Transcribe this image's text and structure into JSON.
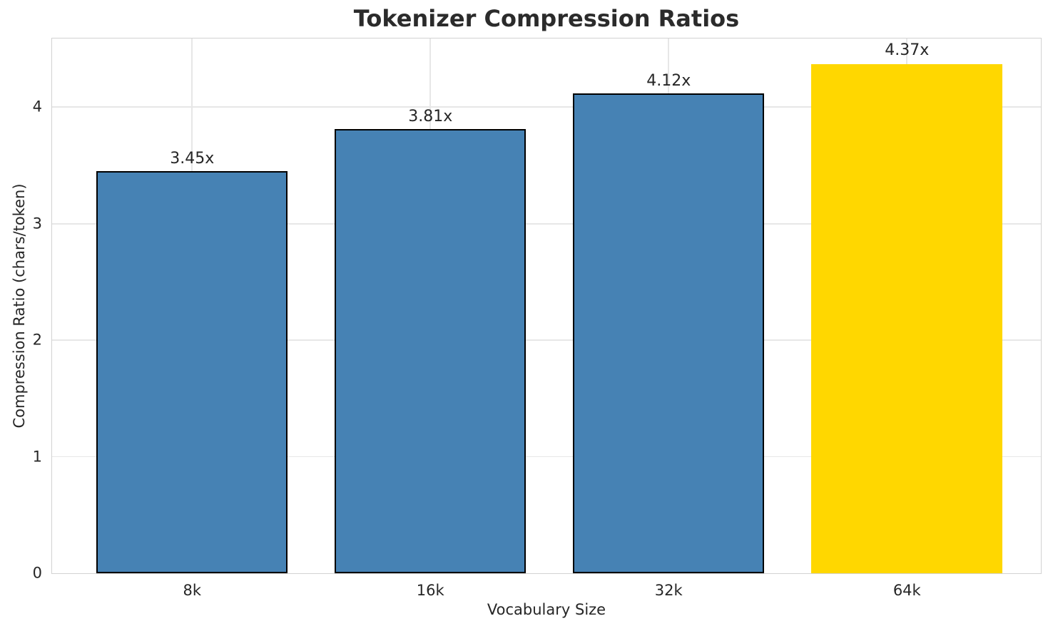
{
  "chart_data": {
    "type": "bar",
    "title": "Tokenizer Compression Ratios",
    "xlabel": "Vocabulary Size",
    "ylabel": "Compression Ratio (chars/token)",
    "categories": [
      "8k",
      "16k",
      "32k",
      "64k"
    ],
    "values": [
      3.45,
      3.81,
      4.12,
      4.37
    ],
    "value_labels": [
      "3.45x",
      "3.81x",
      "4.12x",
      "4.37x"
    ],
    "bar_colors": [
      "#4682B4",
      "#4682B4",
      "#4682B4",
      "#FFD700"
    ],
    "bar_edge_colors": [
      "#000000",
      "#000000",
      "#000000",
      "none"
    ],
    "base_color": "#4682B4",
    "highlight_color": "#FFD700",
    "yticks": [
      0,
      1,
      2,
      3,
      4
    ],
    "ylim": [
      0,
      4.589
    ],
    "grid": "both",
    "grid_color": "#e7e7e7",
    "legend_position": "none"
  }
}
